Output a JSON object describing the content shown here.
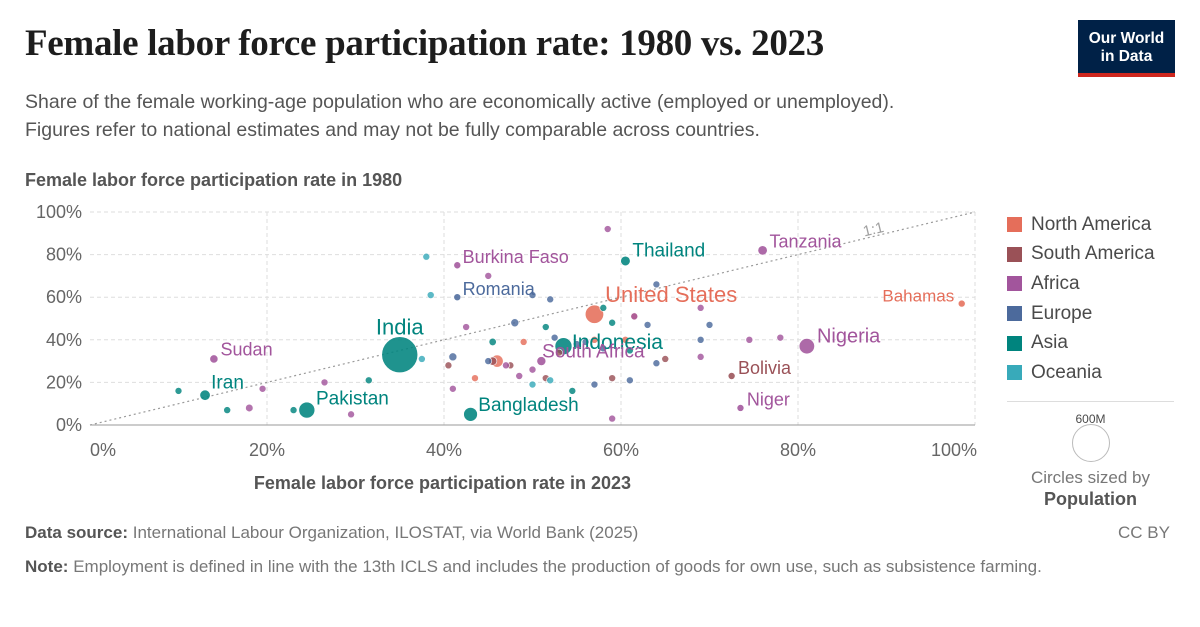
{
  "header": {
    "title": "Female labor force participation rate: 1980 vs. 2023",
    "subtitle_line1": "Share of the female working-age population who are economically active (employed or unemployed).",
    "subtitle_line2": "Figures refer to national estimates and may not be fully comparable across countries."
  },
  "logo": {
    "line1": "Our World",
    "line2": "in Data"
  },
  "footer": {
    "source_label": "Data source:",
    "source_text": "International Labour Organization, ILOSTAT, via World Bank (2025)",
    "license": "CC BY",
    "note_label": "Note:",
    "note_text": "Employment is defined in line with the 13th ICLS and includes the production of goods for own use, such as subsistence farming."
  },
  "chart_data": {
    "type": "scatter",
    "title": "Female labor force participation rate: 1980 vs. 2023",
    "xlabel": "Female labor force participation rate in 2023",
    "ylabel": "Female labor force participation rate in 1980",
    "xlim": [
      0,
      100
    ],
    "ylim": [
      0,
      100
    ],
    "x_ticks": [
      "0%",
      "20%",
      "40%",
      "60%",
      "80%",
      "100%"
    ],
    "y_ticks": [
      "0%",
      "20%",
      "40%",
      "60%",
      "80%",
      "100%"
    ],
    "grid": true,
    "reference_line_label": "1:1",
    "legend_position": "right",
    "regions": [
      {
        "name": "North America",
        "color": "#e56e5a"
      },
      {
        "name": "South America",
        "color": "#9a5157"
      },
      {
        "name": "Africa",
        "color": "#a2559c"
      },
      {
        "name": "Europe",
        "color": "#4c6a9c"
      },
      {
        "name": "Asia",
        "color": "#00847e"
      },
      {
        "name": "Oceania",
        "color": "#38aaba"
      }
    ],
    "size_legend": {
      "value": "600M",
      "note": "Circles sized by",
      "variable": "Population"
    },
    "labeled_points": [
      {
        "name": "India",
        "region": "Asia",
        "x": 35,
        "y": 33,
        "pop": 1430
      },
      {
        "name": "United States",
        "region": "North America",
        "x": 57,
        "y": 52,
        "pop": 335
      },
      {
        "name": "Indonesia",
        "region": "Asia",
        "x": 53.5,
        "y": 37,
        "pop": 278
      },
      {
        "name": "Pakistan",
        "region": "Asia",
        "x": 24.5,
        "y": 7,
        "pop": 240
      },
      {
        "name": "Nigeria",
        "region": "Africa",
        "x": 81,
        "y": 37,
        "pop": 224
      },
      {
        "name": "Bangladesh",
        "region": "Asia",
        "x": 43,
        "y": 5,
        "pop": 172
      },
      {
        "name": "Thailand",
        "region": "Asia",
        "x": 60.5,
        "y": 77,
        "pop": 72
      },
      {
        "name": "Tanzania",
        "region": "Africa",
        "x": 76,
        "y": 82,
        "pop": 67
      },
      {
        "name": "South Africa",
        "region": "Africa",
        "x": 51,
        "y": 30,
        "pop": 60
      },
      {
        "name": "Iran",
        "region": "Asia",
        "x": 13,
        "y": 14,
        "pop": 89
      },
      {
        "name": "Sudan",
        "region": "Africa",
        "x": 14,
        "y": 31,
        "pop": 48
      },
      {
        "name": "Bolivia",
        "region": "South America",
        "x": 72.5,
        "y": 23,
        "pop": 12
      },
      {
        "name": "Niger",
        "region": "Africa",
        "x": 73.5,
        "y": 8,
        "pop": 27
      },
      {
        "name": "Burkina Faso",
        "region": "Africa",
        "x": 41.5,
        "y": 75,
        "pop": 23
      },
      {
        "name": "Romania",
        "region": "Europe",
        "x": 41.5,
        "y": 60,
        "pop": 19
      },
      {
        "name": "Bahamas",
        "region": "North America",
        "x": 98.5,
        "y": 57,
        "pop": 0.4
      }
    ],
    "other_points": [
      {
        "region": "Europe",
        "x": 48,
        "y": 48,
        "pop": 45
      },
      {
        "region": "Europe",
        "x": 41,
        "y": 32,
        "pop": 45
      },
      {
        "region": "Europe",
        "x": 52,
        "y": 59,
        "pop": 30
      },
      {
        "region": "Europe",
        "x": 58,
        "y": 36,
        "pop": 30
      },
      {
        "region": "Europe",
        "x": 52.5,
        "y": 41,
        "pop": 30
      },
      {
        "region": "Europe",
        "x": 55,
        "y": 38,
        "pop": 20
      },
      {
        "region": "Europe",
        "x": 56,
        "y": 39,
        "pop": 10
      },
      {
        "region": "Europe",
        "x": 64,
        "y": 29,
        "pop": 6
      },
      {
        "region": "Europe",
        "x": 64,
        "y": 66,
        "pop": 6
      },
      {
        "region": "Europe",
        "x": 69,
        "y": 40,
        "pop": 5
      },
      {
        "region": "Europe",
        "x": 70,
        "y": 47,
        "pop": 4
      },
      {
        "region": "Europe",
        "x": 61,
        "y": 21,
        "pop": 4
      },
      {
        "region": "Europe",
        "x": 57,
        "y": 19,
        "pop": 4
      },
      {
        "region": "Europe",
        "x": 50,
        "y": 61,
        "pop": 4
      },
      {
        "region": "Europe",
        "x": 45,
        "y": 30,
        "pop": 3
      },
      {
        "region": "Europe",
        "x": 63,
        "y": 47,
        "pop": 5
      },
      {
        "region": "Asia",
        "x": 45.5,
        "y": 39,
        "pop": 35
      },
      {
        "region": "Asia",
        "x": 61,
        "y": 35,
        "pop": 8
      },
      {
        "region": "Asia",
        "x": 51.5,
        "y": 46,
        "pop": 10
      },
      {
        "region": "Asia",
        "x": 31.5,
        "y": 21,
        "pop": 6
      },
      {
        "region": "Asia",
        "x": 10,
        "y": 16,
        "pop": 5
      },
      {
        "region": "Asia",
        "x": 15.5,
        "y": 7,
        "pop": 5
      },
      {
        "region": "Asia",
        "x": 54.5,
        "y": 16,
        "pop": 5
      },
      {
        "region": "Asia",
        "x": 23,
        "y": 7,
        "pop": 4
      },
      {
        "region": "Asia",
        "x": 58,
        "y": 55,
        "pop": 4
      },
      {
        "region": "Asia",
        "x": 59,
        "y": 48,
        "pop": 5
      },
      {
        "region": "Africa",
        "x": 18,
        "y": 8,
        "pop": 40
      },
      {
        "region": "Africa",
        "x": 48.5,
        "y": 23,
        "pop": 30
      },
      {
        "region": "Africa",
        "x": 45,
        "y": 70,
        "pop": 20
      },
      {
        "region": "Africa",
        "x": 58.5,
        "y": 92,
        "pop": 20
      },
      {
        "region": "Africa",
        "x": 42.5,
        "y": 46,
        "pop": 15
      },
      {
        "region": "Africa",
        "x": 41,
        "y": 17,
        "pop": 15
      },
      {
        "region": "Africa",
        "x": 19.5,
        "y": 17,
        "pop": 20
      },
      {
        "region": "Africa",
        "x": 26.5,
        "y": 20,
        "pop": 8
      },
      {
        "region": "Africa",
        "x": 29.5,
        "y": 5,
        "pop": 10
      },
      {
        "region": "Africa",
        "x": 47,
        "y": 28,
        "pop": 10
      },
      {
        "region": "Africa",
        "x": 61.5,
        "y": 51,
        "pop": 12
      },
      {
        "region": "Africa",
        "x": 69,
        "y": 32,
        "pop": 10
      },
      {
        "region": "Africa",
        "x": 69,
        "y": 55,
        "pop": 5
      },
      {
        "region": "Africa",
        "x": 74.5,
        "y": 40,
        "pop": 5
      },
      {
        "region": "Africa",
        "x": 78,
        "y": 41,
        "pop": 5
      },
      {
        "region": "Africa",
        "x": 59,
        "y": 3,
        "pop": 3
      },
      {
        "region": "Africa",
        "x": 50,
        "y": 26,
        "pop": 3
      },
      {
        "region": "South America",
        "x": 45.5,
        "y": 30,
        "pop": 50
      },
      {
        "region": "South America",
        "x": 47.5,
        "y": 28,
        "pop": 20
      },
      {
        "region": "South America",
        "x": 40.5,
        "y": 28,
        "pop": 12
      },
      {
        "region": "South America",
        "x": 51.5,
        "y": 22,
        "pop": 10
      },
      {
        "region": "South America",
        "x": 65,
        "y": 31,
        "pop": 8
      },
      {
        "region": "South America",
        "x": 59,
        "y": 22,
        "pop": 6
      },
      {
        "region": "South America",
        "x": 53,
        "y": 34,
        "pop": 4
      },
      {
        "region": "North America",
        "x": 46,
        "y": 30,
        "pop": 130
      },
      {
        "region": "North America",
        "x": 61.5,
        "y": 51,
        "pop": 40
      },
      {
        "region": "North America",
        "x": 49,
        "y": 39,
        "pop": 8
      },
      {
        "region": "North America",
        "x": 43.5,
        "y": 22,
        "pop": 6
      },
      {
        "region": "North America",
        "x": 57,
        "y": 40,
        "pop": 6
      },
      {
        "region": "North America",
        "x": 60.5,
        "y": 40,
        "pop": 4
      },
      {
        "region": "Oceania",
        "x": 38,
        "y": 79,
        "pop": 3
      },
      {
        "region": "Oceania",
        "x": 38.5,
        "y": 61,
        "pop": 5
      },
      {
        "region": "Oceania",
        "x": 37.5,
        "y": 31,
        "pop": 3
      },
      {
        "region": "Oceania",
        "x": 50,
        "y": 19,
        "pop": 3
      },
      {
        "region": "Oceania",
        "x": 52,
        "y": 21,
        "pop": 3
      }
    ]
  }
}
